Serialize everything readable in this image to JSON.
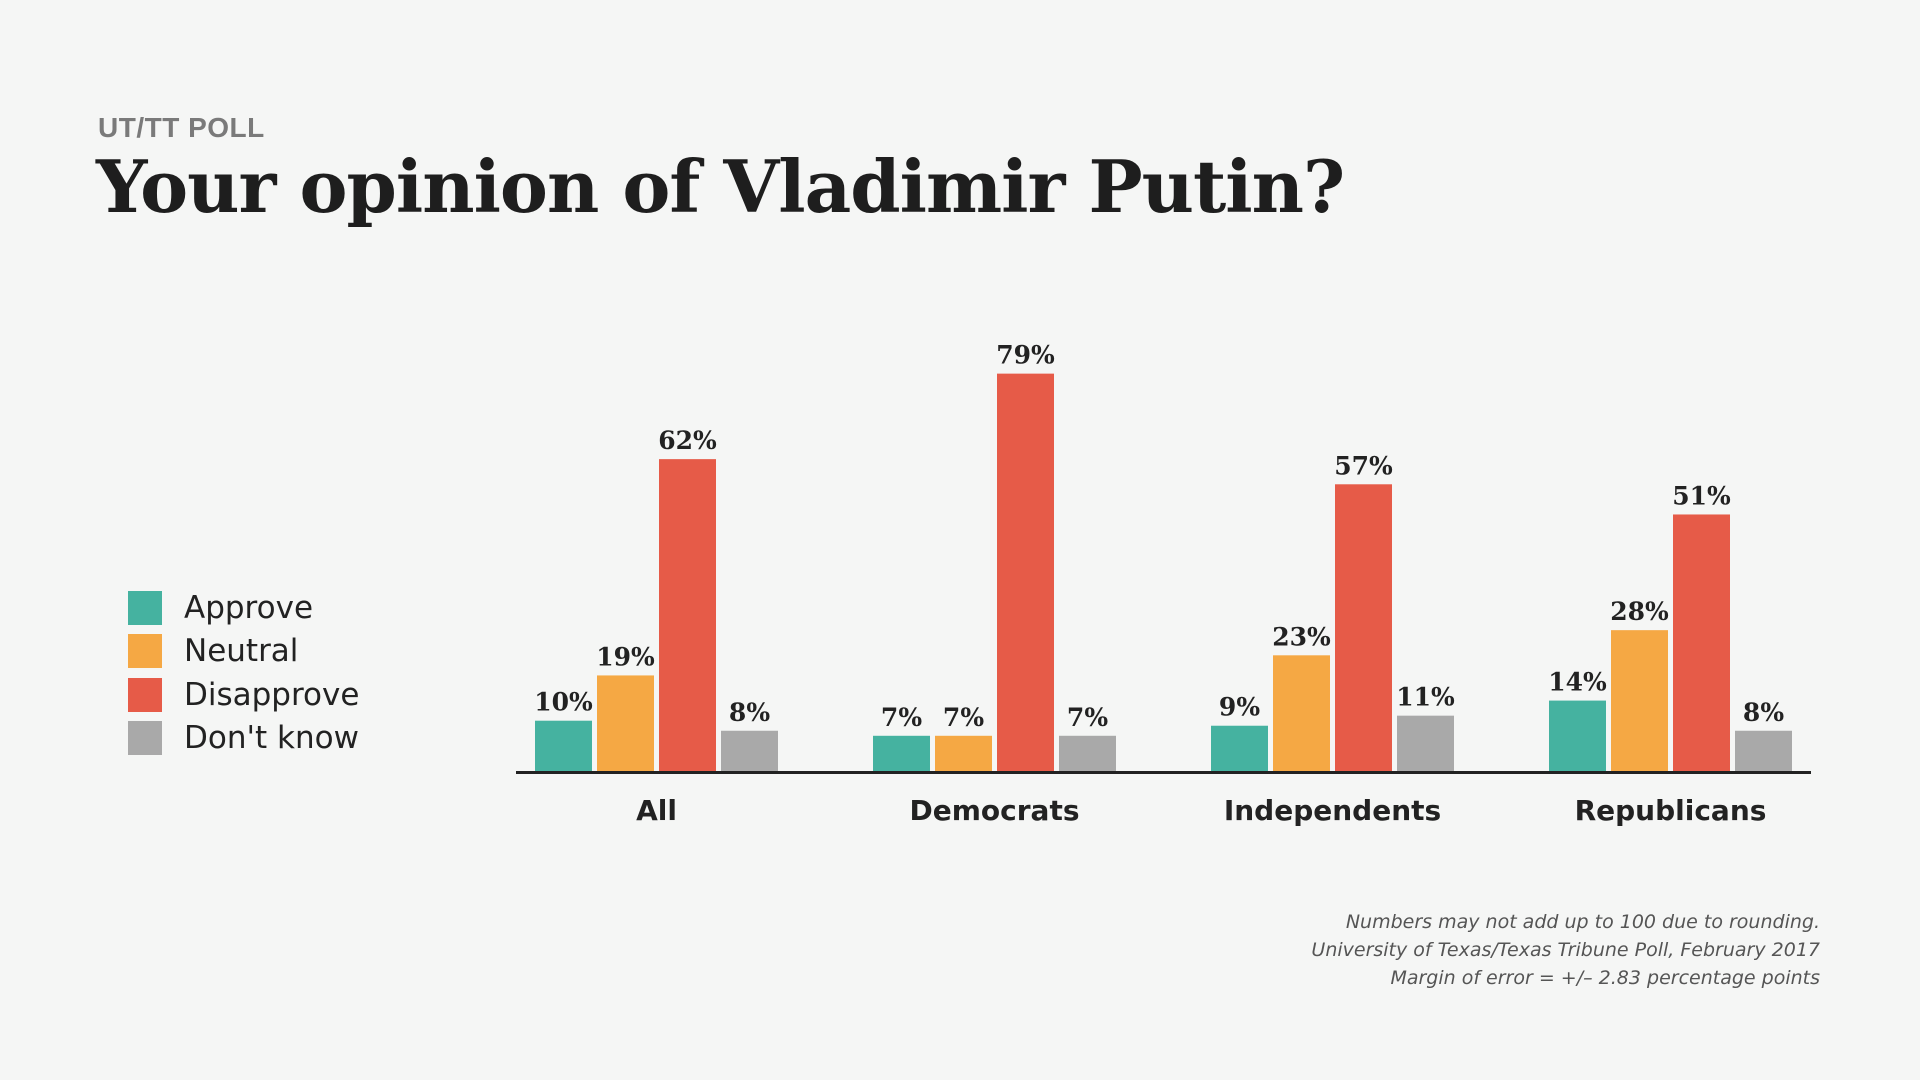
{
  "header": {
    "kicker": "UT/TT POLL",
    "title": "Your opinion of Vladimir Putin?"
  },
  "colors": {
    "approve": "#45b2a0",
    "neutral": "#f5a844",
    "disapprove": "#e65b48",
    "dont_know": "#a9a9a9",
    "axis": "#222222"
  },
  "chart_data": {
    "type": "bar",
    "categories": [
      "All",
      "Democrats",
      "Independents",
      "Republicans"
    ],
    "series": [
      {
        "name": "Approve",
        "values": [
          10,
          7,
          9,
          14
        ]
      },
      {
        "name": "Neutral",
        "values": [
          19,
          7,
          23,
          28
        ]
      },
      {
        "name": "Disapprove",
        "values": [
          62,
          79,
          57,
          51
        ]
      },
      {
        "name": "Don't know",
        "values": [
          8,
          7,
          11,
          8
        ]
      }
    ],
    "data_labels": [
      [
        "10%",
        "19%",
        "62%",
        "8%"
      ],
      [
        "7%",
        "7%",
        "79%",
        "7%"
      ],
      [
        "9%",
        "23%",
        "57%",
        "11%"
      ],
      [
        "14%",
        "28%",
        "51%",
        "8%"
      ]
    ],
    "ylim": [
      0,
      100
    ],
    "grid": false,
    "legend_position": "left"
  },
  "footnote": {
    "line1": "Numbers may not add up to 100 due to rounding.",
    "line2": "University of Texas/Texas Tribune Poll, February 2017",
    "line3": "Margin of error = +/– 2.83 percentage points"
  }
}
